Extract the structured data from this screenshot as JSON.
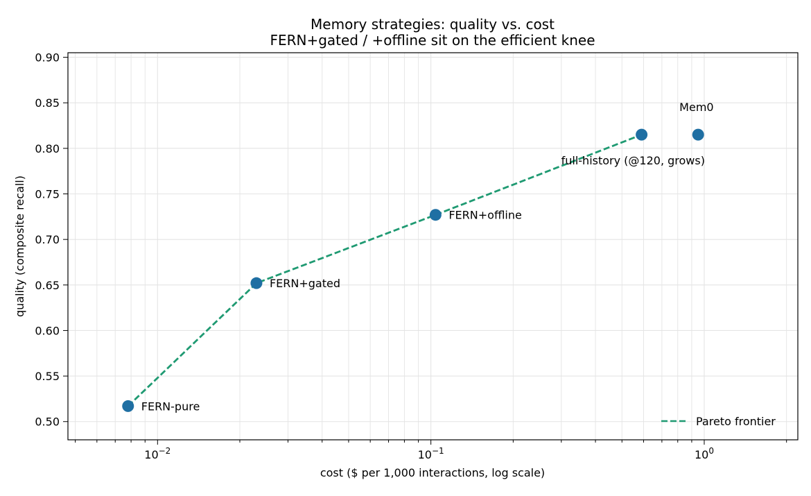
{
  "chart_data": {
    "type": "scatter",
    "title": "Memory strategies: quality vs. cost",
    "subtitle": "FERN+gated / +offline sit on the efficient knee",
    "xlabel": "cost  ($ per 1,000 interactions, log scale)",
    "ylabel": "quality (composite recall)",
    "xscale": "log",
    "xlim": [
      0.0047,
      2.2
    ],
    "ylim": [
      0.48,
      0.905
    ],
    "grid": true,
    "x_major_ticks": [
      {
        "value": 0.01,
        "base": "10",
        "exp": "−2"
      },
      {
        "value": 0.1,
        "base": "10",
        "exp": "−1"
      },
      {
        "value": 1,
        "base": "10",
        "exp": "0"
      }
    ],
    "y_ticks": [
      {
        "value": 0.5,
        "label": "0.50"
      },
      {
        "value": 0.55,
        "label": "0.55"
      },
      {
        "value": 0.6,
        "label": "0.60"
      },
      {
        "value": 0.65,
        "label": "0.65"
      },
      {
        "value": 0.7,
        "label": "0.70"
      },
      {
        "value": 0.75,
        "label": "0.75"
      },
      {
        "value": 0.8,
        "label": "0.80"
      },
      {
        "value": 0.85,
        "label": "0.85"
      },
      {
        "value": 0.9,
        "label": "0.90"
      }
    ],
    "points": [
      {
        "label": "FERN-pure",
        "x": 0.0078,
        "y": 0.517,
        "label_pos": "right"
      },
      {
        "label": "FERN+gated",
        "x": 0.023,
        "y": 0.652,
        "label_pos": "right"
      },
      {
        "label": "FERN+offline",
        "x": 0.104,
        "y": 0.727,
        "label_pos": "right"
      },
      {
        "label": "full-history (@120, grows)",
        "x": 0.59,
        "y": 0.815,
        "label_pos": "below-left"
      },
      {
        "label": "Mem0",
        "x": 0.95,
        "y": 0.815,
        "label_pos": "above-left"
      }
    ],
    "frontier": {
      "name": "Pareto frontier",
      "x": [
        0.0078,
        0.023,
        0.104,
        0.59
      ],
      "y": [
        0.517,
        0.652,
        0.727,
        0.815
      ]
    },
    "legend_position": "lower-right",
    "colors": {
      "point": "#1f6fa3",
      "frontier": "#1f9a72",
      "grid": "#e4e4e4"
    }
  }
}
